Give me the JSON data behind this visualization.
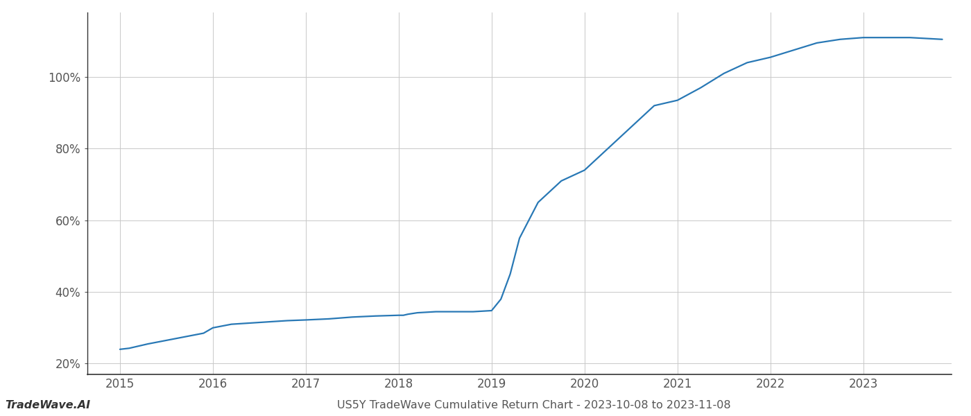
{
  "title": "US5Y TradeWave Cumulative Return Chart - 2023-10-08 to 2023-11-08",
  "watermark": "TradeWave.AI",
  "line_color": "#2878b5",
  "background_color": "#ffffff",
  "grid_color": "#c8c8c8",
  "x_values": [
    2015.0,
    2015.1,
    2015.3,
    2015.5,
    2015.7,
    2015.9,
    2016.0,
    2016.2,
    2016.5,
    2016.8,
    2017.0,
    2017.25,
    2017.5,
    2017.75,
    2018.0,
    2018.05,
    2018.1,
    2018.2,
    2018.4,
    2018.6,
    2018.8,
    2019.0,
    2019.1,
    2019.2,
    2019.3,
    2019.5,
    2019.75,
    2020.0,
    2020.25,
    2020.5,
    2020.75,
    2021.0,
    2021.25,
    2021.5,
    2021.75,
    2022.0,
    2022.25,
    2022.5,
    2022.75,
    2023.0,
    2023.5,
    2023.85
  ],
  "y_values": [
    24.0,
    24.3,
    25.5,
    26.5,
    27.5,
    28.5,
    30.0,
    31.0,
    31.5,
    32.0,
    32.2,
    32.5,
    33.0,
    33.3,
    33.5,
    33.5,
    33.8,
    34.2,
    34.5,
    34.5,
    34.5,
    34.8,
    38.0,
    45.0,
    55.0,
    65.0,
    71.0,
    74.0,
    80.0,
    86.0,
    92.0,
    93.5,
    97.0,
    101.0,
    104.0,
    105.5,
    107.5,
    109.5,
    110.5,
    111.0,
    111.0,
    110.5
  ],
  "xlim": [
    2014.65,
    2023.95
  ],
  "ylim": [
    17,
    118
  ],
  "yticks": [
    20,
    40,
    60,
    80,
    100
  ],
  "xticks": [
    2015,
    2016,
    2017,
    2018,
    2019,
    2020,
    2021,
    2022,
    2023
  ],
  "line_width": 1.6,
  "title_fontsize": 11.5,
  "tick_fontsize": 12,
  "watermark_fontsize": 11.5
}
